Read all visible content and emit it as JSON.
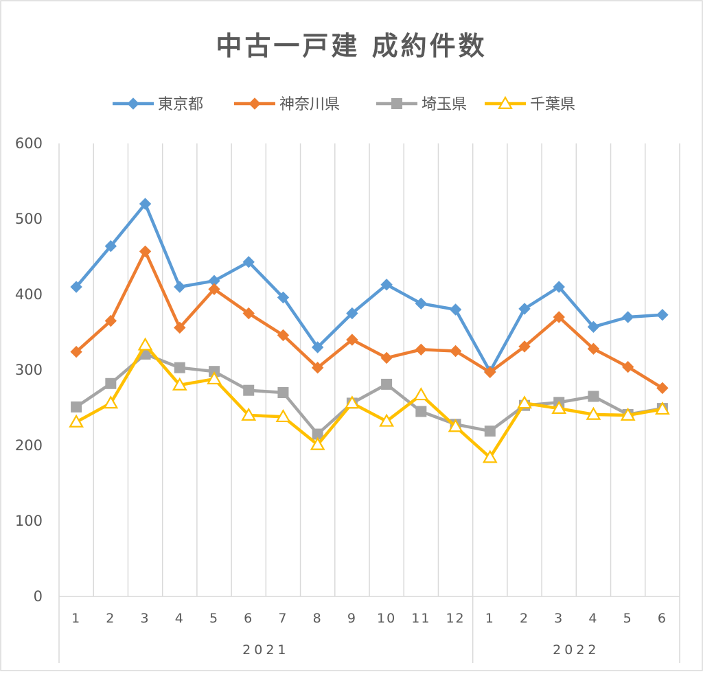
{
  "chart_data": {
    "type": "line",
    "title": "中古一戸建 成約件数",
    "xlabel": "",
    "ylabel": "",
    "ylim": [
      0,
      600
    ],
    "yticks": [
      "0",
      "100",
      "200",
      "300",
      "400",
      "500",
      "600"
    ],
    "categories": [
      "1",
      "2",
      "3",
      "4",
      "5",
      "6",
      "7",
      "8",
      "9",
      "10",
      "11",
      "12",
      "1",
      "2",
      "3",
      "4",
      "5",
      "6"
    ],
    "year_groups": [
      {
        "label": "2021",
        "count": 12
      },
      {
        "label": "2022",
        "count": 6
      }
    ],
    "legend_position": "top",
    "grid": "vertical",
    "series": [
      {
        "name": "東京都",
        "color": "#5b9bd5",
        "marker": "diamond",
        "values": [
          410,
          464,
          520,
          410,
          418,
          443,
          396,
          330,
          375,
          413,
          388,
          380,
          298,
          381,
          410,
          357,
          370,
          373
        ]
      },
      {
        "name": "神奈川県",
        "color": "#ed7d31",
        "marker": "diamond",
        "values": [
          324,
          365,
          457,
          356,
          407,
          375,
          346,
          303,
          340,
          316,
          327,
          325,
          297,
          331,
          370,
          328,
          304,
          276
        ]
      },
      {
        "name": "埼玉県",
        "color": "#a5a5a5",
        "marker": "square",
        "values": [
          251,
          282,
          321,
          303,
          298,
          273,
          270,
          215,
          256,
          281,
          245,
          228,
          219,
          253,
          257,
          265,
          241,
          249
        ]
      },
      {
        "name": "千葉県",
        "color": "#ffc000",
        "marker": "triangle",
        "values": [
          231,
          256,
          333,
          280,
          288,
          240,
          238,
          201,
          256,
          232,
          267,
          225,
          184,
          256,
          249,
          241,
          240,
          248
        ]
      }
    ]
  }
}
